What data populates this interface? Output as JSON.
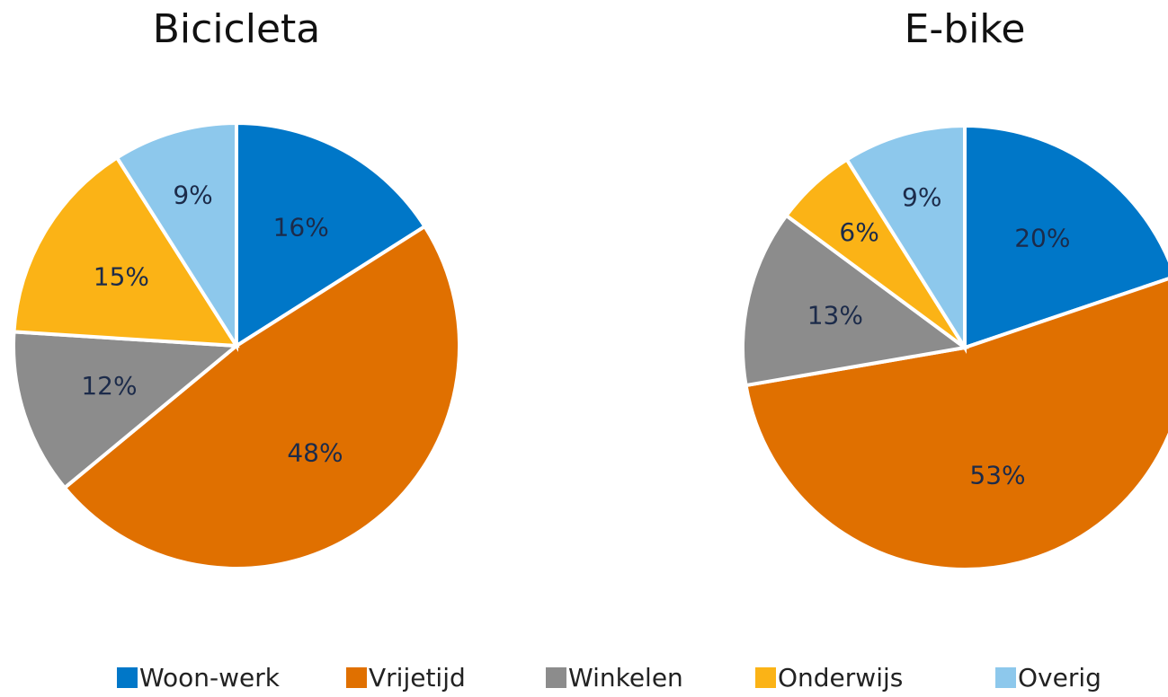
{
  "chart_data": [
    {
      "type": "pie",
      "title": "Bicicleta",
      "categories": [
        "Woon-werk",
        "Vrijetijd",
        "Winkelen",
        "Onderwijs",
        "Overig"
      ],
      "values": [
        16,
        48,
        12,
        15,
        9
      ],
      "value_labels": [
        "16%",
        "48%",
        "12%",
        "15%",
        "9%"
      ],
      "colors": [
        "#0077c8",
        "#e07000",
        "#8c8c8c",
        "#fbb316",
        "#8dc8ec"
      ],
      "legend": "bottom"
    },
    {
      "type": "pie",
      "title": "E-bike",
      "categories": [
        "Woon-werk",
        "Vrijetijd",
        "Winkelen",
        "Onderwijs",
        "Overig"
      ],
      "values": [
        20,
        53,
        13,
        6,
        9
      ],
      "value_labels": [
        "20%",
        "53%",
        "13%",
        "6%",
        "9%"
      ],
      "colors": [
        "#0077c8",
        "#e07000",
        "#8c8c8c",
        "#fbb316",
        "#8dc8ec"
      ]
    }
  ]
}
